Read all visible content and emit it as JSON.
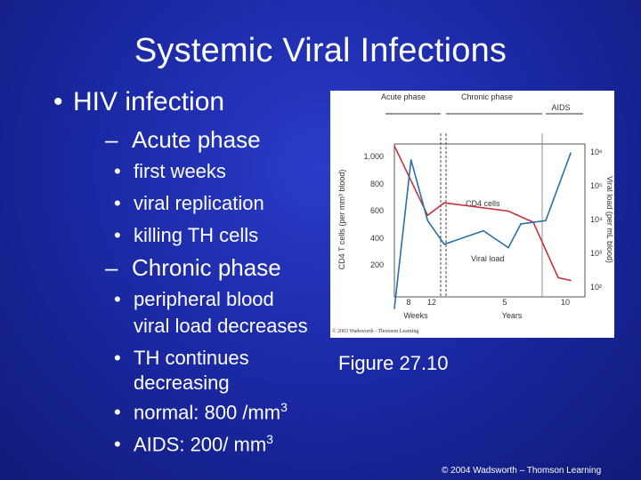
{
  "slide": {
    "title": "Systemic Viral Infections",
    "figure_label": "Figure 27.10",
    "footer": "© 2004 Wadsworth – Thomson Learning"
  },
  "bullets": {
    "hiv": "HIV infection",
    "acute_phase": "Acute phase",
    "acute_items": [
      "first weeks",
      "viral replication",
      "killing TH cells"
    ],
    "chronic_phase": "Chronic phase",
    "chronic_items": [
      "peripheral blood",
      "viral load decreases",
      "TH continues",
      "decreasing",
      "normal:  800 /mm",
      "AIDS:  200/ mm"
    ],
    "superscript": "3"
  },
  "chart_data": {
    "type": "line",
    "phase_labels": [
      "Acute phase",
      "Chronic phase",
      "AIDS"
    ],
    "left_axis_label": "CD4 T cells (per mm³ blood)",
    "left_ticks": [
      "200",
      "400",
      "600",
      "800",
      "1,000"
    ],
    "right_axis_label": "Viral load (per mL blood)",
    "right_ticks": [
      "10²",
      "10³",
      "10⁴",
      "10⁵",
      "10⁶"
    ],
    "x_ticks": [
      "8",
      "12",
      "5",
      "10"
    ],
    "x_labels": [
      "Weeks",
      "Years"
    ],
    "series": [
      {
        "name": "CD4 cells",
        "color": "#c8303a",
        "points": [
          [
            0,
            1050
          ],
          [
            8,
            550
          ],
          [
            12,
            640
          ],
          [
            5,
            580
          ],
          [
            7,
            500
          ],
          [
            8,
            300
          ],
          [
            9,
            100
          ],
          [
            10,
            80
          ]
        ]
      },
      {
        "name": "Viral load",
        "color": "#2a6fa8",
        "points": [
          [
            0,
            1.5
          ],
          [
            4,
            5.9
          ],
          [
            8,
            4.1
          ],
          [
            12,
            3.4
          ],
          [
            3,
            3.8
          ],
          [
            5,
            3.3
          ],
          [
            6,
            4
          ],
          [
            8,
            4.1
          ],
          [
            10,
            6.1
          ]
        ]
      }
    ],
    "credit": "© 2003 Wadsworth - Thomson Learning"
  }
}
